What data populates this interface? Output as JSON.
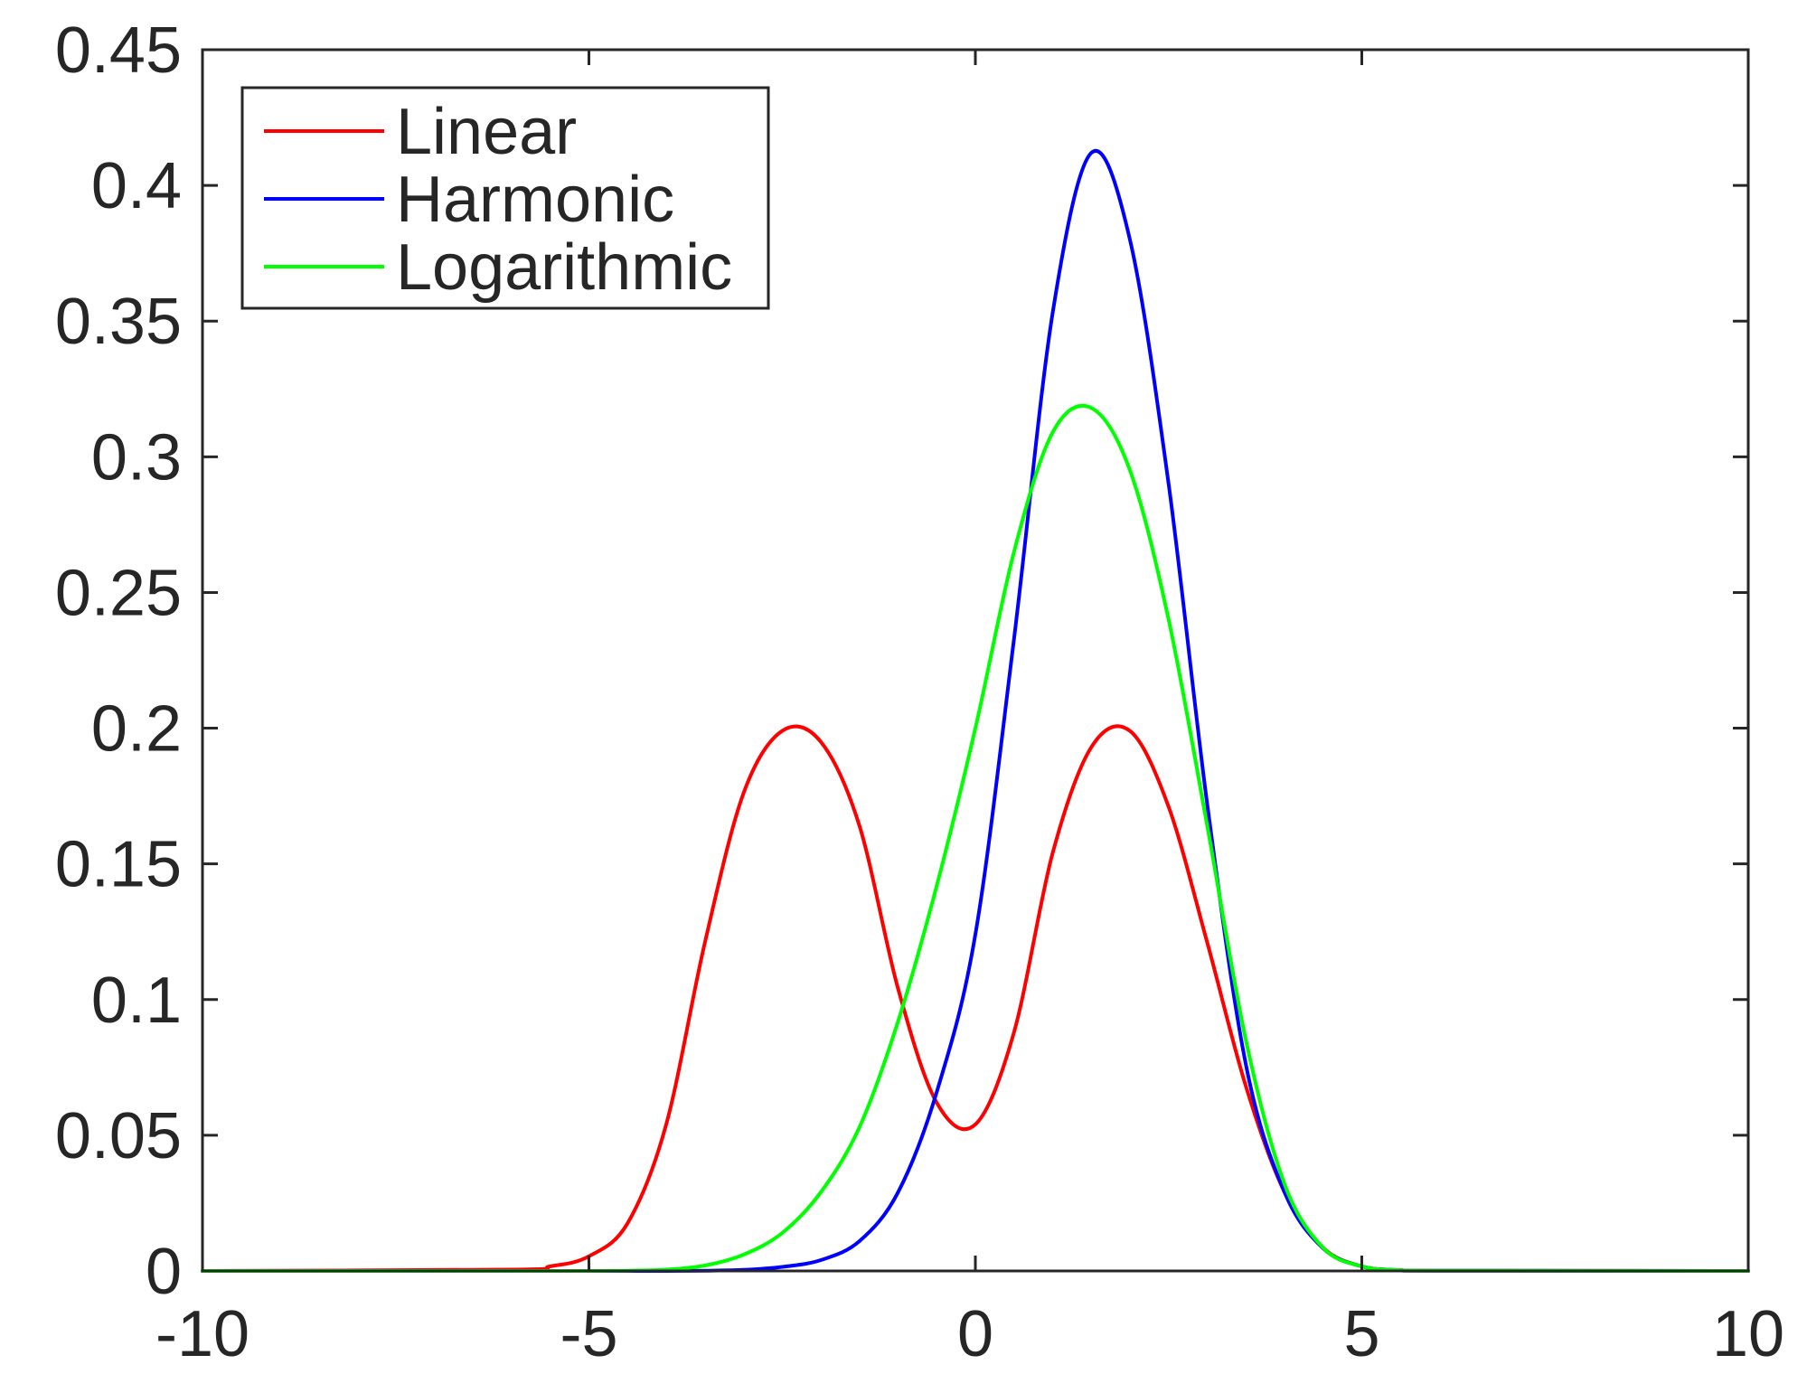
{
  "chart_data": {
    "type": "line",
    "title": "",
    "xlabel": "",
    "ylabel": "",
    "xlim": [
      -10,
      10
    ],
    "ylim": [
      0,
      0.45
    ],
    "grid": false,
    "legend_position": "top-left",
    "x_ticks": [
      -10,
      -5,
      0,
      5,
      10
    ],
    "x_tick_labels": [
      "-10",
      "-5",
      "0",
      "5",
      "10"
    ],
    "y_ticks": [
      0,
      0.05,
      0.1,
      0.15,
      0.2,
      0.25,
      0.3,
      0.35,
      0.4,
      0.45
    ],
    "y_tick_labels": [
      "0",
      "0.05",
      "0.1",
      "0.15",
      "0.2",
      "0.25",
      "0.3",
      "0.35",
      "0.4",
      "0.45"
    ],
    "x": [
      -10,
      -6,
      -5.5,
      -5,
      -4.5,
      -4,
      -3.5,
      -3,
      -2.5,
      -2,
      -1.5,
      -1,
      -0.5,
      0,
      0.5,
      1,
      1.5,
      2,
      2.5,
      3,
      3.5,
      4,
      4.5,
      5,
      5.5,
      6,
      10
    ],
    "series": [
      {
        "name": "Linear",
        "color": "#ff0000",
        "values": [
          0,
          0.0005,
          0.0017,
          0.0054,
          0.0176,
          0.054,
          0.121,
          0.176,
          0.199,
          0.195,
          0.164,
          0.104,
          0.062,
          0.054,
          0.088,
          0.154,
          0.193,
          0.199,
          0.171,
          0.121,
          0.068,
          0.029,
          0.0085,
          0.0017,
          0.0003,
          0.0001,
          0
        ]
      },
      {
        "name": "Harmonic",
        "color": "#0000ff",
        "values": [
          0,
          0,
          0,
          0,
          0,
          0,
          0.0001,
          0.0004,
          0.0015,
          0.004,
          0.011,
          0.029,
          0.066,
          0.124,
          0.233,
          0.353,
          0.412,
          0.38,
          0.29,
          0.172,
          0.076,
          0.029,
          0.0083,
          0.0017,
          0.0003,
          0.0001,
          0
        ]
      },
      {
        "name": "Logarithmic",
        "color": "#00ff00",
        "values": [
          0,
          0,
          0,
          0,
          0.0001,
          0.0005,
          0.002,
          0.006,
          0.014,
          0.029,
          0.053,
          0.092,
          0.142,
          0.2,
          0.265,
          0.309,
          0.318,
          0.295,
          0.24,
          0.164,
          0.085,
          0.032,
          0.0085,
          0.0017,
          0.0003,
          0.0001,
          0
        ]
      }
    ]
  }
}
